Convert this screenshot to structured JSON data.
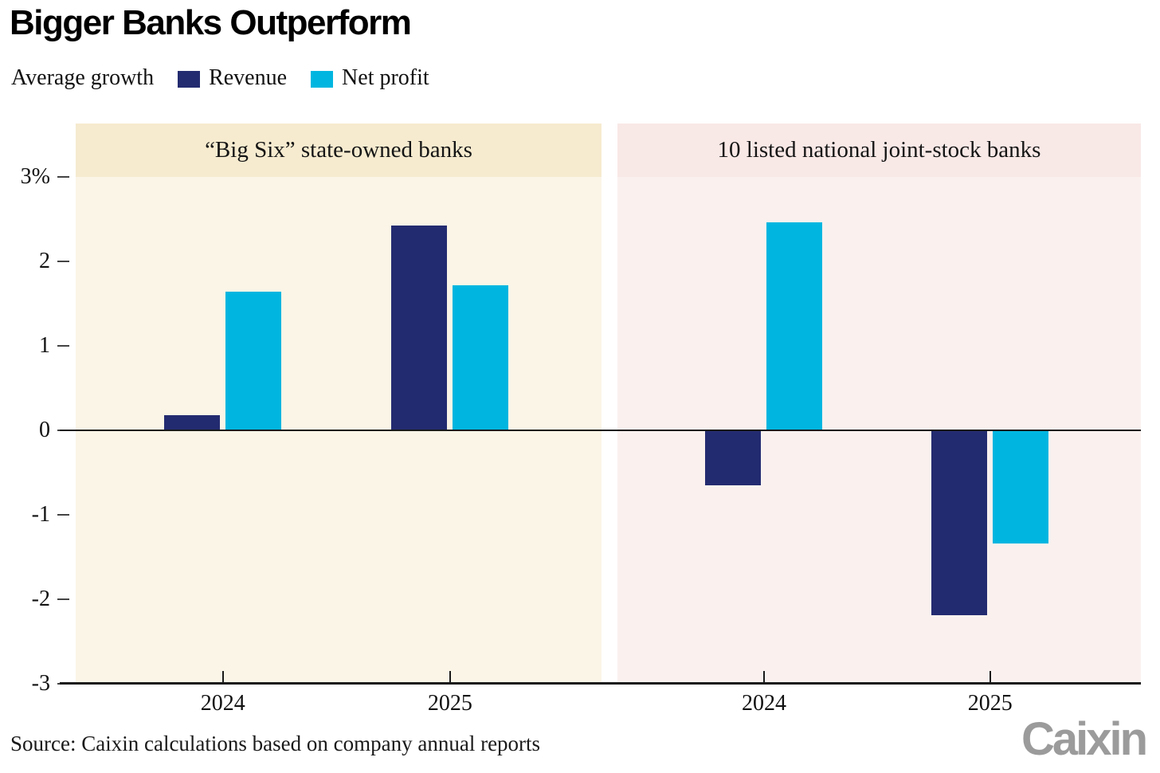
{
  "chart_data": {
    "type": "bar",
    "title": "Bigger Banks Outperform",
    "legend_label": "Average growth",
    "legend_position": "top",
    "series": [
      {
        "name": "Revenue",
        "color": "#232b70"
      },
      {
        "name": "Net profit",
        "color": "#00b6e0"
      }
    ],
    "categories": [
      "2024",
      "2025"
    ],
    "ylim": [
      -3,
      3
    ],
    "yticks": [
      "3%",
      "2",
      "1",
      "0",
      "-1",
      "-2",
      "-3"
    ],
    "ylabel": "",
    "xlabel": "",
    "grid": "zero baseline and bottom axis only",
    "panels": [
      {
        "title": "“Big Six” state-owned banks",
        "header_bg": "#f6ebcf",
        "body_bg": "#fbf5e7",
        "series": [
          {
            "name": "Revenue",
            "values": [
              0.18,
              2.42
            ]
          },
          {
            "name": "Net profit",
            "values": [
              1.64,
              1.72
            ]
          }
        ]
      },
      {
        "title": "10 listed national joint-stock banks",
        "header_bg": "#f8e8e6",
        "body_bg": "#faf1ef",
        "series": [
          {
            "name": "Revenue",
            "values": [
              -0.65,
              -2.19
            ]
          },
          {
            "name": "Net profit",
            "values": [
              2.46,
              -1.34
            ]
          }
        ]
      }
    ]
  },
  "footer": {
    "source": "Source: Caixin calculations based on company annual reports",
    "logo_text": "Caixin"
  }
}
